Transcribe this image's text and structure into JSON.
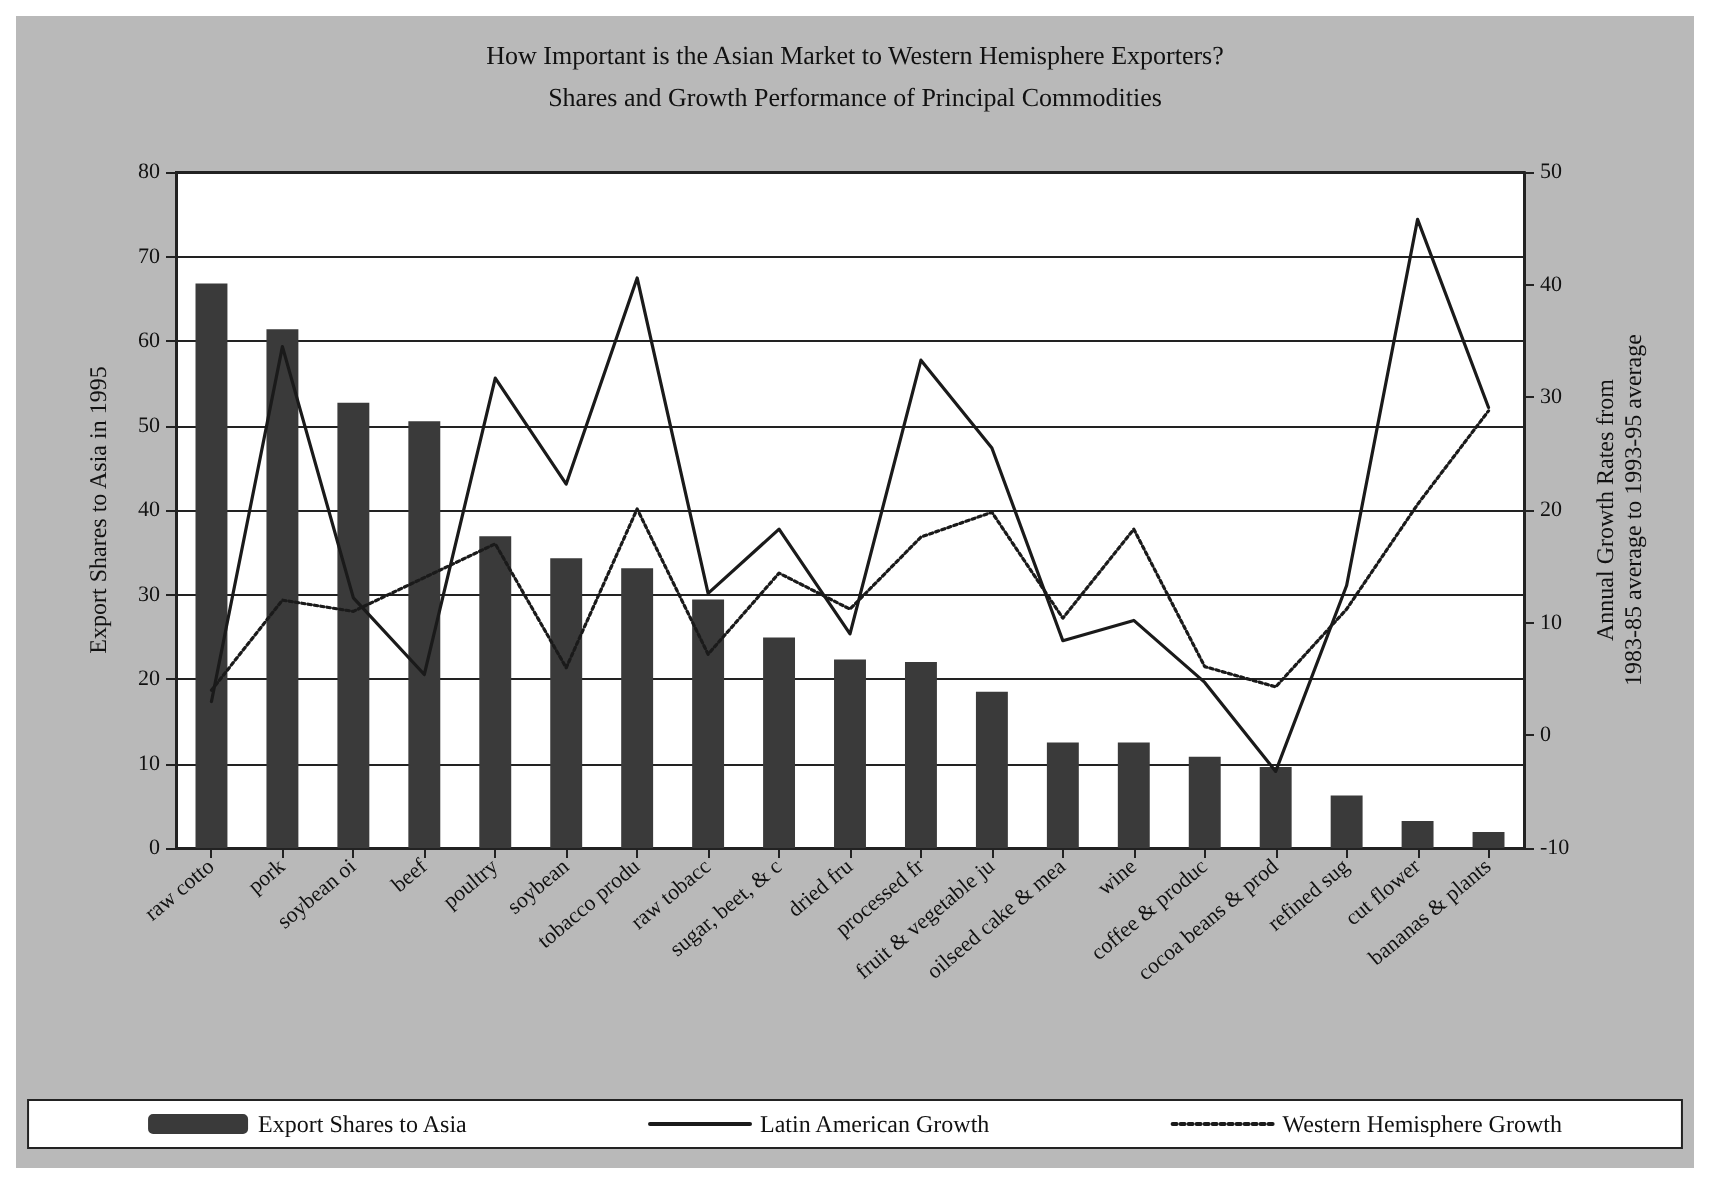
{
  "chart_data": {
    "type": "bar",
    "title": "How Important is the Asian Market to Western Hemisphere Exporters?",
    "subtitle": "Shares and Growth Performance of Principal Commodities",
    "ylabel": "Export Shares to Asia in 1995",
    "y2label": "Annual Growth Rates from\n1983-85 average to 1993-95 average",
    "categories": [
      "raw cotto",
      "pork",
      "soybean oi",
      "beef",
      "poultry",
      "soybean",
      "tobacco produ",
      "raw tobacc",
      "sugar, beet, & c",
      "dried fru",
      "processed fr",
      "fruit & vegetable ju",
      "oilseed cake & mea",
      "wine",
      "coffee & produc",
      "cocoa beans & prod",
      "refined sug",
      "cut flower",
      "bananas & plants"
    ],
    "series": [
      {
        "name": "Export Shares to Asia",
        "color": "#3a3a3a",
        "values": [
          66.8,
          61.4,
          52.7,
          50.5,
          36.9,
          34.3,
          33.1,
          29.4,
          24.9,
          22.3,
          22.0,
          18.5,
          12.5,
          12.5,
          10.8,
          9.6,
          6.2,
          3.2,
          1.9
        ]
      },
      {
        "name": "Latin American Growth",
        "type": "line",
        "axis": "y2",
        "color": "#1a1a1a",
        "line_style": "solid",
        "values": [
          3,
          34.5,
          12.2,
          5.4,
          31.7,
          22.3,
          40.6,
          12.6,
          18.3,
          9,
          33.3,
          25.5,
          8.4,
          10.2,
          4.7,
          -3.2,
          13.3,
          45.8,
          29.1
        ]
      },
      {
        "name": "Western Hemisphere Growth",
        "type": "line",
        "axis": "y2",
        "color": "#1a1a1a",
        "line_style": "dotted",
        "values": [
          4,
          12,
          11,
          14,
          17,
          6,
          20.1,
          7.2,
          14.4,
          11.2,
          17.6,
          19.8,
          10.4,
          18.3,
          6.1,
          4.3,
          11.2,
          20.5,
          28.8
        ]
      }
    ],
    "ylim": [
      0,
      80
    ],
    "yticks": [
      0,
      10,
      20,
      30,
      40,
      50,
      60,
      70,
      80
    ],
    "y2lim": [
      -10,
      50
    ],
    "y2ticks": [
      -10,
      0,
      10,
      20,
      30,
      40,
      50
    ],
    "grid": "y",
    "legend": "bottom",
    "marker": "none"
  }
}
